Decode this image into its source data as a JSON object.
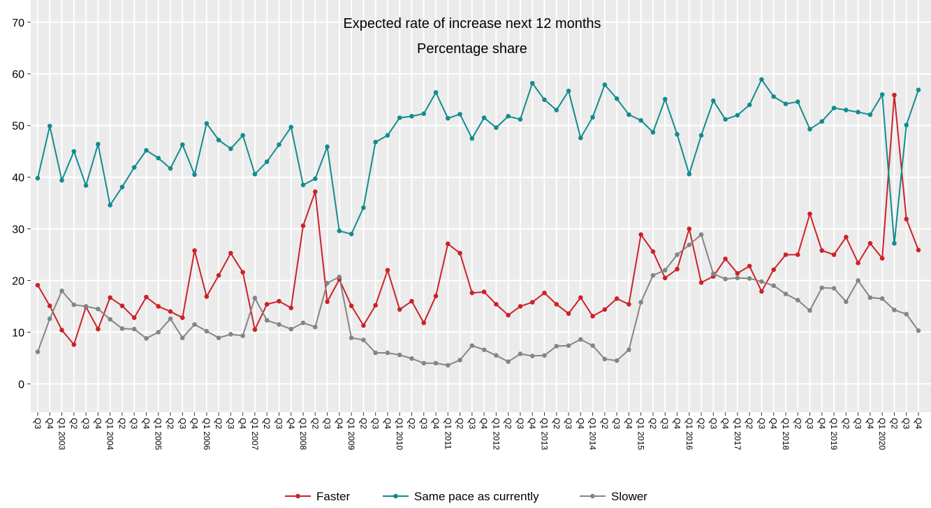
{
  "chart_data": {
    "type": "line",
    "title": "Expected rate of increase next 12 months",
    "subtitle": "Percentage share",
    "categories": [
      "Q3",
      "Q4",
      "Q1 2003",
      "Q2",
      "Q3",
      "Q4",
      "Q1 2004",
      "Q2",
      "Q3",
      "Q4",
      "Q1 2005",
      "Q2",
      "Q3",
      "Q4",
      "Q1 2006",
      "Q2",
      "Q3",
      "Q4",
      "Q1 2007",
      "Q2",
      "Q3",
      "Q4",
      "Q1 2008",
      "Q2",
      "Q3",
      "Q4",
      "Q1 2009",
      "Q2",
      "Q3",
      "Q4",
      "Q1 2010",
      "Q2",
      "Q3",
      "Q4",
      "Q1 2011",
      "Q2",
      "Q3",
      "Q4",
      "Q1 2012",
      "Q2",
      "Q3",
      "Q4",
      "Q1 2013",
      "Q2",
      "Q3",
      "Q4",
      "Q1 2014",
      "Q2",
      "Q3",
      "Q4",
      "Q1 2015",
      "Q2",
      "Q3",
      "Q4",
      "Q1 2016",
      "Q2",
      "Q3",
      "Q4",
      "Q1 2017",
      "Q2",
      "Q3",
      "Q4",
      "Q1 2018",
      "Q2",
      "Q3",
      "Q4",
      "Q1 2019",
      "Q2",
      "Q3",
      "Q4",
      "Q1 2020",
      "Q2",
      "Q3",
      "Q4"
    ],
    "series": [
      {
        "name": "Faster",
        "color": "#cc2229",
        "values": [
          19.1,
          15.1,
          10.4,
          7.6,
          14.9,
          10.6,
          16.7,
          15.1,
          12.8,
          16.8,
          15.0,
          14.0,
          12.8,
          25.8,
          16.9,
          21.0,
          25.3,
          21.6,
          10.5,
          15.4,
          16.0,
          14.7,
          30.6,
          37.2,
          15.9,
          20.2,
          15.1,
          11.3,
          15.2,
          22.0,
          14.4,
          16.0,
          11.8,
          17.0,
          27.1,
          25.3,
          17.6,
          17.8,
          15.4,
          13.3,
          15.0,
          15.8,
          17.6,
          15.4,
          13.6,
          16.7,
          13.1,
          14.4,
          16.5,
          15.4,
          28.9,
          25.6,
          20.5,
          22.2,
          30.0,
          19.6,
          20.8,
          24.2,
          21.4,
          22.8,
          17.9,
          22.1,
          25.0,
          25.0,
          32.9,
          25.8,
          25.0,
          28.4,
          23.4,
          27.2,
          24.3,
          55.9,
          31.9,
          25.9
        ]
      },
      {
        "name": "Same pace as currently",
        "color": "#138c8e",
        "values": [
          39.8,
          49.9,
          39.4,
          45.0,
          38.4,
          46.4,
          34.6,
          38.1,
          41.9,
          45.2,
          43.7,
          41.7,
          46.3,
          40.5,
          50.4,
          47.2,
          45.5,
          48.1,
          40.6,
          43.0,
          46.3,
          49.7,
          38.5,
          39.7,
          45.9,
          29.6,
          29.0,
          34.1,
          46.8,
          48.1,
          51.5,
          51.8,
          52.3,
          56.4,
          51.4,
          52.2,
          47.5,
          51.5,
          49.6,
          51.8,
          51.2,
          58.2,
          55.0,
          53.0,
          56.7,
          47.6,
          51.6,
          57.9,
          55.2,
          52.1,
          51.0,
          48.7,
          55.1,
          48.3,
          40.6,
          48.1,
          54.8,
          51.2,
          52.0,
          54.0,
          58.9,
          55.6,
          54.2,
          54.6,
          49.3,
          50.8,
          53.4,
          53.0,
          52.6,
          52.1,
          56.0,
          27.2,
          50.1,
          56.9
        ]
      },
      {
        "name": "Slower",
        "color": "#858585",
        "values": [
          6.2,
          12.6,
          18.0,
          15.3,
          15.0,
          14.5,
          12.5,
          10.7,
          10.6,
          8.8,
          10.0,
          12.6,
          8.9,
          11.5,
          10.2,
          8.9,
          9.6,
          9.3,
          16.6,
          12.3,
          11.5,
          10.6,
          11.8,
          11.0,
          19.5,
          20.7,
          8.9,
          8.5,
          6.0,
          6.0,
          5.6,
          4.9,
          4.0,
          4.0,
          3.6,
          4.6,
          7.4,
          6.6,
          5.5,
          4.3,
          5.8,
          5.4,
          5.5,
          7.3,
          7.4,
          8.6,
          7.4,
          4.8,
          4.5,
          6.6,
          15.8,
          21.0,
          22.0,
          25.0,
          26.9,
          28.9,
          21.3,
          20.3,
          20.5,
          20.4,
          19.8,
          19.0,
          17.4,
          16.2,
          14.2,
          18.6,
          18.5,
          15.9,
          20.0,
          16.7,
          16.5,
          14.3,
          13.5,
          10.3
        ]
      }
    ],
    "ylim": [
      -5.5,
      74.3
    ],
    "yticks": [
      0,
      10,
      20,
      30,
      40,
      50,
      60,
      70
    ],
    "grid": true,
    "legend_position": "bottom"
  }
}
